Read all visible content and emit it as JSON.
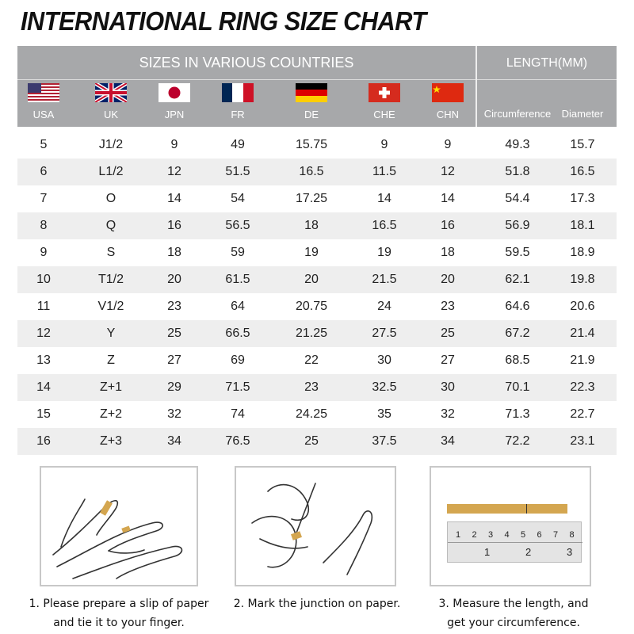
{
  "title": "INTERNATIONAL RING SIZE CHART",
  "header": {
    "sizes_label": "SIZES IN VARIOUS COUNTRIES",
    "length_label": "LENGTH(MM)",
    "countries": [
      {
        "code": "USA",
        "flag": "us-flag"
      },
      {
        "code": "UK",
        "flag": "uk-flag"
      },
      {
        "code": "JPN",
        "flag": "japan-flag"
      },
      {
        "code": "FR",
        "flag": "france-flag"
      },
      {
        "code": "DE",
        "flag": "germany-flag"
      },
      {
        "code": "CHE",
        "flag": "switzerland-flag"
      },
      {
        "code": "CHN",
        "flag": "china-flag"
      }
    ],
    "measures": [
      "Circumference",
      "Diameter"
    ]
  },
  "rows": [
    [
      "5",
      "J1/2",
      "9",
      "49",
      "15.75",
      "9",
      "9",
      "49.3",
      "15.7"
    ],
    [
      "6",
      "L1/2",
      "12",
      "51.5",
      "16.5",
      "11.5",
      "12",
      "51.8",
      "16.5"
    ],
    [
      "7",
      "O",
      "14",
      "54",
      "17.25",
      "14",
      "14",
      "54.4",
      "17.3"
    ],
    [
      "8",
      "Q",
      "16",
      "56.5",
      "18",
      "16.5",
      "16",
      "56.9",
      "18.1"
    ],
    [
      "9",
      "S",
      "18",
      "59",
      "19",
      "19",
      "18",
      "59.5",
      "18.9"
    ],
    [
      "10",
      "T1/2",
      "20",
      "61.5",
      "20",
      "21.5",
      "20",
      "62.1",
      "19.8"
    ],
    [
      "11",
      "V1/2",
      "23",
      "64",
      "20.75",
      "24",
      "23",
      "64.6",
      "20.6"
    ],
    [
      "12",
      "Y",
      "25",
      "66.5",
      "21.25",
      "27.5",
      "25",
      "67.2",
      "21.4"
    ],
    [
      "13",
      "Z",
      "27",
      "69",
      "22",
      "30",
      "27",
      "68.5",
      "21.9"
    ],
    [
      "14",
      "Z+1",
      "29",
      "71.5",
      "23",
      "32.5",
      "30",
      "70.1",
      "22.3"
    ],
    [
      "15",
      "Z+2",
      "32",
      "74",
      "24.25",
      "35",
      "32",
      "71.3",
      "22.7"
    ],
    [
      "16",
      "Z+3",
      "34",
      "76.5",
      "25",
      "37.5",
      "34",
      "72.2",
      "23.1"
    ]
  ],
  "steps": [
    {
      "line1": "1. Please prepare a slip of paper",
      "line2": "and tie it to your finger."
    },
    {
      "line1": "2. Mark the junction on paper.",
      "line2": ""
    },
    {
      "line1": "3. Measure the length, and",
      "line2": "get your circumference."
    }
  ],
  "ruler": {
    "cm": [
      "1",
      "2",
      "3",
      "4",
      "5",
      "6",
      "7",
      "8"
    ],
    "inch": [
      "1",
      "2",
      "3"
    ]
  },
  "colors": {
    "header_bg": "#a7a8aa",
    "alt_row": "#eeeeee",
    "paper": "#d4a650"
  }
}
